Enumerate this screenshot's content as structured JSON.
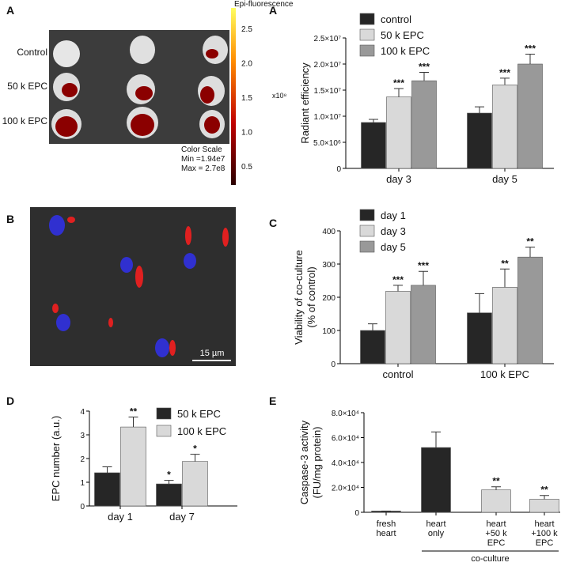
{
  "images": {
    "a_letter": "A",
    "a_rows": [
      "Control",
      "50 k EPC",
      "100 k EPC"
    ],
    "a_scale_title": "Epi-fluorescence",
    "a_scale_ticks": [
      "2.5",
      "2.0",
      "1.5",
      "1.0",
      "0.5"
    ],
    "a_scale_unit": "x10⁸",
    "a_scale_notes": [
      "Color Scale",
      "Min =1.94e7",
      "Max = 2.7e8"
    ],
    "b_letter": "B",
    "b_scalebar": "15 µm"
  },
  "chart_data": [
    {
      "type": "bar",
      "panel": "A",
      "ylabel": [
        "Radiant efficiency"
      ],
      "categories": [
        "day 3",
        "day 5"
      ],
      "series": [
        {
          "name": "control",
          "color": "#262626",
          "values": [
            8800000,
            10600000
          ],
          "errors": [
            600000,
            1200000
          ],
          "significance": [
            null,
            null
          ]
        },
        {
          "name": "50 k EPC",
          "color": "#d9d9d9",
          "values": [
            13700000,
            16000000
          ],
          "errors": [
            1600000,
            1300000
          ],
          "significance": [
            "***",
            "***"
          ]
        },
        {
          "name": "100 k EPC",
          "color": "#999999",
          "values": [
            16800000,
            20000000
          ],
          "errors": [
            1600000,
            1900000
          ],
          "significance": [
            "***",
            "***"
          ]
        }
      ],
      "ylim": [
        0,
        25000000
      ],
      "yticks": [
        0,
        {
          "value": 5000000,
          "label": "5.0×10⁶"
        },
        {
          "value": 10000000,
          "label": "1.0×10⁷"
        },
        {
          "value": 15000000,
          "label": "1.5×10⁷"
        },
        {
          "value": 20000000,
          "label": "2.0×10⁷"
        },
        {
          "value": 25000000,
          "label": "2.5×10⁷"
        }
      ]
    },
    {
      "type": "bar",
      "panel": "C",
      "ylabel": [
        "Viability of co-culture",
        "(% of control)"
      ],
      "categories": [
        "control",
        "100 k EPC"
      ],
      "series": [
        {
          "name": "day 1",
          "color": "#262626",
          "values": [
            100,
            153
          ],
          "errors": [
            20,
            58
          ],
          "significance": [
            null,
            null
          ]
        },
        {
          "name": "day 3",
          "color": "#d9d9d9",
          "values": [
            218,
            230
          ],
          "errors": [
            18,
            55
          ],
          "significance": [
            "***",
            "**"
          ]
        },
        {
          "name": "day 5",
          "color": "#999999",
          "values": [
            236,
            321
          ],
          "errors": [
            42,
            30
          ],
          "significance": [
            "***",
            "**"
          ]
        }
      ],
      "ylim": [
        0,
        400
      ],
      "yticks": [
        0,
        100,
        200,
        300,
        400
      ]
    },
    {
      "type": "bar",
      "panel": "D",
      "ylabel": [
        "EPC number (a.u.)"
      ],
      "categories": [
        "day 1",
        "day 7"
      ],
      "series": [
        {
          "name": "50 k EPC",
          "color": "#262626",
          "values": [
            1.4,
            0.93
          ],
          "errors": [
            0.25,
            0.15
          ],
          "significance": [
            null,
            "*"
          ]
        },
        {
          "name": "100 k EPC",
          "color": "#d9d9d9",
          "values": [
            3.33,
            1.88
          ],
          "errors": [
            0.42,
            0.3
          ],
          "significance": [
            "**",
            "*"
          ]
        }
      ],
      "ylim": [
        0,
        4
      ],
      "yticks": [
        0,
        1,
        2,
        3,
        4
      ]
    },
    {
      "type": "bar",
      "panel": "E",
      "ylabel": [
        "Caspase-3 activity",
        "(FU/mg protein)"
      ],
      "categories": [
        "fresh heart",
        "heart only",
        "heart +50 k EPC",
        "heart +100 k EPC"
      ],
      "values": [
        1000,
        52000,
        18000,
        10500
      ],
      "errors": [
        0,
        12500,
        2500,
        3000
      ],
      "colors": [
        "#262626",
        "#262626",
        "#d9d9d9",
        "#d9d9d9"
      ],
      "significance": [
        null,
        null,
        "**",
        "**"
      ],
      "group_label": "co-culture",
      "ylim": [
        0,
        80000
      ],
      "yticks": [
        0,
        {
          "value": 20000,
          "label": "2.0×10⁴"
        },
        {
          "value": 40000,
          "label": "4.0×10⁴"
        },
        {
          "value": 60000,
          "label": "6.0×10⁴"
        },
        {
          "value": 80000,
          "label": "8.0×10⁴"
        }
      ]
    }
  ]
}
